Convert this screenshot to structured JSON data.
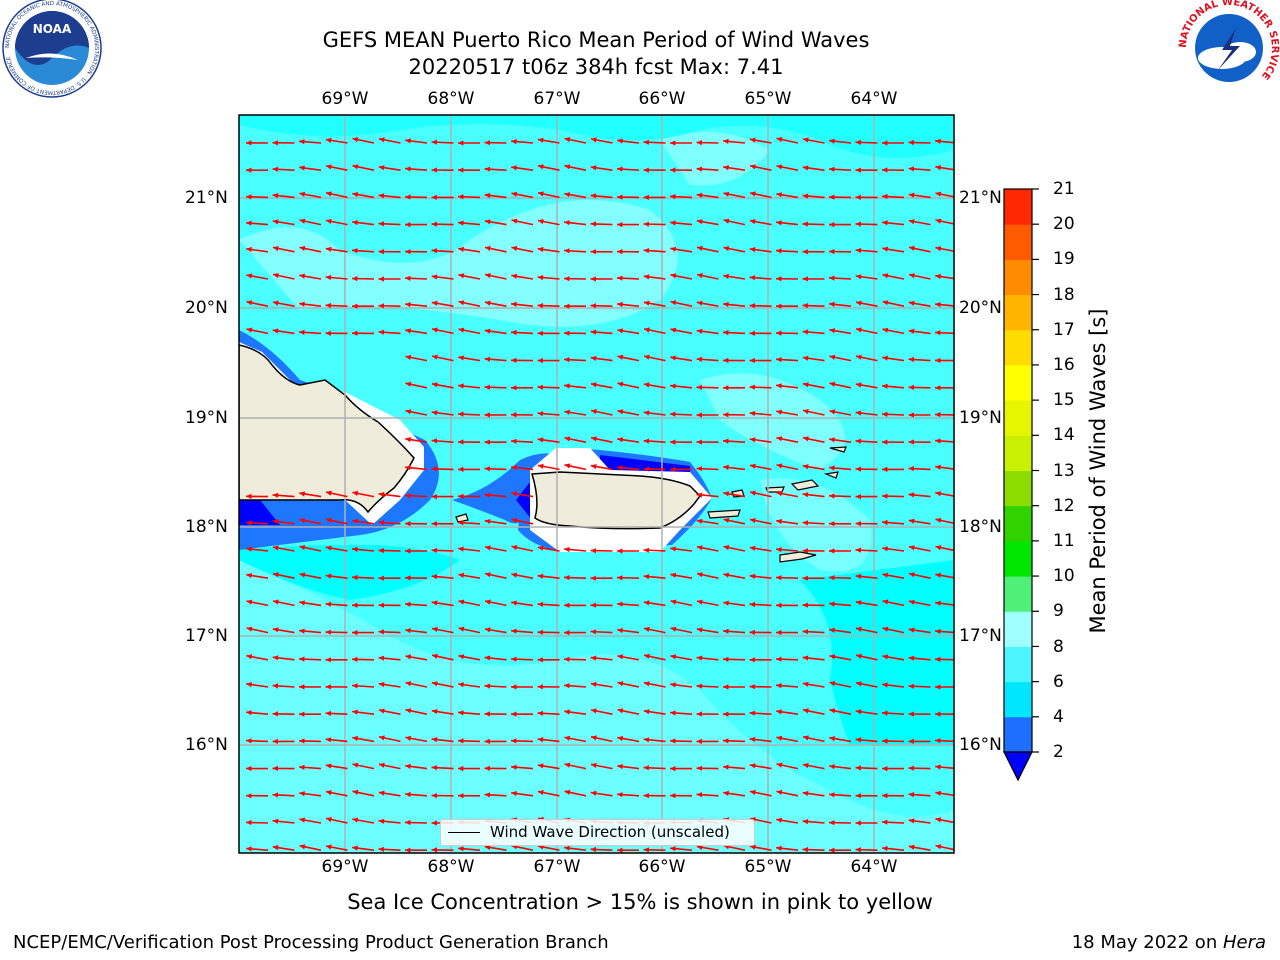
{
  "header": {
    "title_line1": "GEFS MEAN Puerto Rico Mean Period of Wind Waves",
    "title_line2": "20220517 t06z 384h fcst   Max: 7.41",
    "noaa_logo_text": "NOAA",
    "noaa_logo_ring_text": "NATIONAL OCEANIC AND ATMOSPHERIC ADMINISTRATION · U.S. DEPARTMENT OF COMMERCE",
    "nws_logo_ring_text": "NATIONAL WEATHER SERVICE"
  },
  "map": {
    "lon_labels": [
      "69°W",
      "68°W",
      "67°W",
      "66°W",
      "65°W",
      "64°W"
    ],
    "lat_labels": [
      "21°N",
      "20°N",
      "19°N",
      "18°N",
      "17°N",
      "16°N"
    ],
    "legend_label": "Wind Wave Direction (unscaled)",
    "arrow_color": "#ff0000",
    "land_color": "#efecdc",
    "ocean_colors": {
      "below_2": "#0000ff",
      "2_to_4": "#1e78ff",
      "4_to_6": "#00ffff",
      "6_to_8": "#4affff",
      "8_to_9": "#97ffff"
    }
  },
  "colorbar": {
    "title": "Mean Period of Wind Waves [s]",
    "ticks": [
      "2",
      "4",
      "6",
      "8",
      "9",
      "10",
      "11",
      "12",
      "13",
      "14",
      "15",
      "16",
      "17",
      "18",
      "19",
      "20",
      "21"
    ],
    "colors": [
      "#1e6eff",
      "#00e6ff",
      "#4af5ff",
      "#a0ffff",
      "#50f078",
      "#00e600",
      "#32d200",
      "#8cdc00",
      "#c8f000",
      "#e6f500",
      "#ffff00",
      "#ffdc00",
      "#ffb400",
      "#ff8c00",
      "#ff5a00",
      "#ff2800"
    ],
    "under_color": "#0000ff",
    "over_color": "#ff0000"
  },
  "footer": {
    "ice_note": "Sea Ice Concentration > 15% is shown in pink to yellow",
    "credit": "NCEP/EMC/Verification Post Processing Product Generation Branch",
    "date_prefix": "18 May 2022 on ",
    "date_machine": "Hera"
  }
}
